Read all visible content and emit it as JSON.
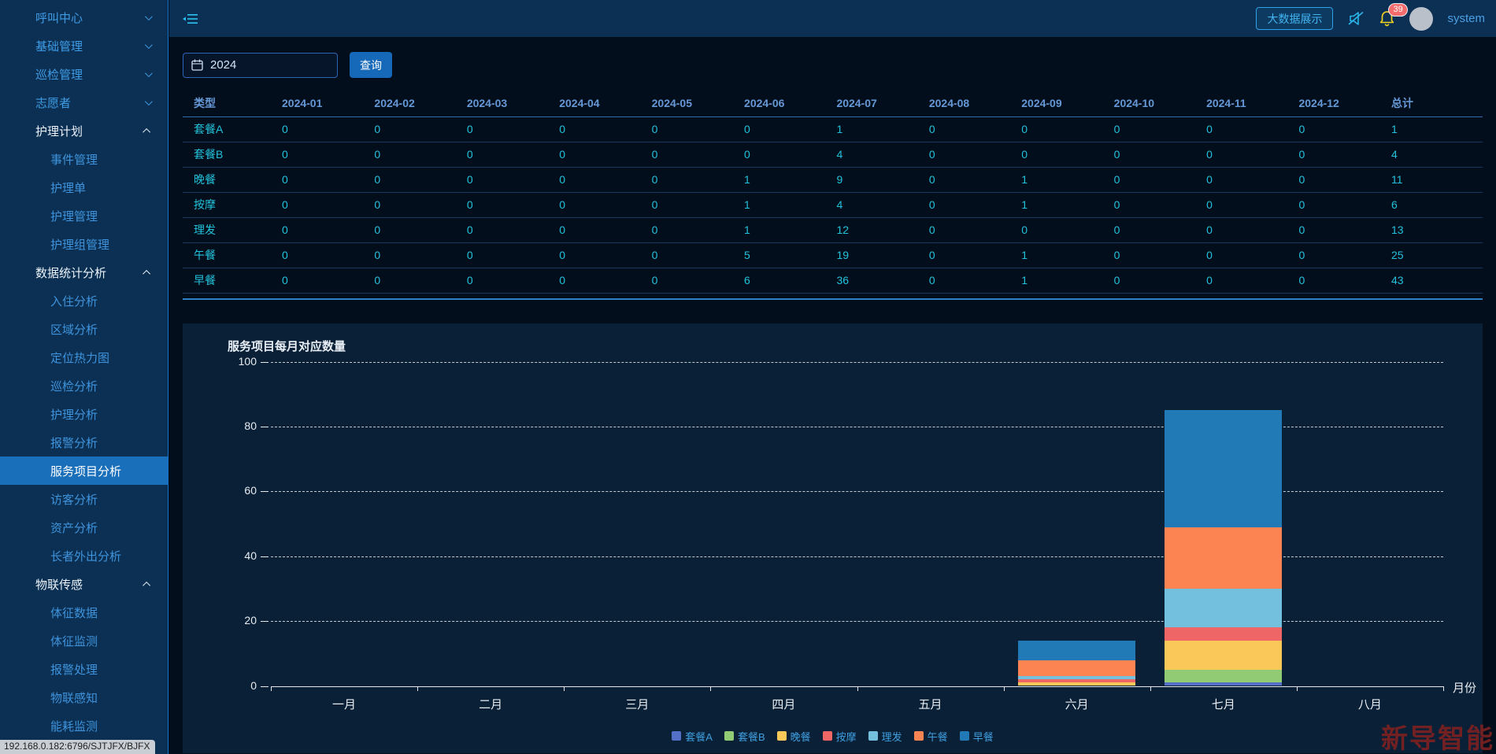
{
  "topbar": {
    "bigdata_button": "大数据展示",
    "notification_count": "39",
    "username": "system"
  },
  "sidebar": {
    "items": [
      {
        "label": "呼叫中心",
        "type": "parent",
        "expanded": false,
        "chevron": "down"
      },
      {
        "label": "基础管理",
        "type": "parent",
        "expanded": false,
        "chevron": "down"
      },
      {
        "label": "巡检管理",
        "type": "parent",
        "expanded": false,
        "chevron": "down"
      },
      {
        "label": "志愿者",
        "type": "parent",
        "expanded": false,
        "chevron": "down"
      },
      {
        "label": "护理计划",
        "type": "parent",
        "expanded": true,
        "chevron": "up"
      },
      {
        "label": "事件管理",
        "type": "child"
      },
      {
        "label": "护理单",
        "type": "child"
      },
      {
        "label": "护理管理",
        "type": "child"
      },
      {
        "label": "护理组管理",
        "type": "child"
      },
      {
        "label": "数据统计分析",
        "type": "parent",
        "expanded": true,
        "chevron": "up"
      },
      {
        "label": "入住分析",
        "type": "child"
      },
      {
        "label": "区域分析",
        "type": "child"
      },
      {
        "label": "定位热力图",
        "type": "child"
      },
      {
        "label": "巡检分析",
        "type": "child"
      },
      {
        "label": "护理分析",
        "type": "child"
      },
      {
        "label": "报警分析",
        "type": "child"
      },
      {
        "label": "服务项目分析",
        "type": "child",
        "selected": true
      },
      {
        "label": "访客分析",
        "type": "child"
      },
      {
        "label": "资产分析",
        "type": "child"
      },
      {
        "label": "长者外出分析",
        "type": "child"
      },
      {
        "label": "物联传感",
        "type": "parent",
        "expanded": true,
        "chevron": "up"
      },
      {
        "label": "体征数据",
        "type": "child"
      },
      {
        "label": "体征监测",
        "type": "child"
      },
      {
        "label": "报警处理",
        "type": "child"
      },
      {
        "label": "物联感知",
        "type": "child"
      },
      {
        "label": "能耗监测",
        "type": "child"
      }
    ]
  },
  "query": {
    "year_value": "2024",
    "search_button": "查询"
  },
  "table": {
    "columns": [
      "类型",
      "2024-01",
      "2024-02",
      "2024-03",
      "2024-04",
      "2024-05",
      "2024-06",
      "2024-07",
      "2024-08",
      "2024-09",
      "2024-10",
      "2024-11",
      "2024-12",
      "总计"
    ],
    "rows": [
      {
        "label": "套餐A",
        "values": [
          0,
          0,
          0,
          0,
          0,
          0,
          1,
          0,
          0,
          0,
          0,
          0
        ],
        "total": 1
      },
      {
        "label": "套餐B",
        "values": [
          0,
          0,
          0,
          0,
          0,
          0,
          4,
          0,
          0,
          0,
          0,
          0
        ],
        "total": 4
      },
      {
        "label": "晚餐",
        "values": [
          0,
          0,
          0,
          0,
          0,
          1,
          9,
          0,
          1,
          0,
          0,
          0
        ],
        "total": 11
      },
      {
        "label": "按摩",
        "values": [
          0,
          0,
          0,
          0,
          0,
          1,
          4,
          0,
          1,
          0,
          0,
          0
        ],
        "total": 6
      },
      {
        "label": "理发",
        "values": [
          0,
          0,
          0,
          0,
          0,
          1,
          12,
          0,
          0,
          0,
          0,
          0
        ],
        "total": 13
      },
      {
        "label": "午餐",
        "values": [
          0,
          0,
          0,
          0,
          0,
          5,
          19,
          0,
          1,
          0,
          0,
          0
        ],
        "total": 25
      },
      {
        "label": "早餐",
        "values": [
          0,
          0,
          0,
          0,
          0,
          6,
          36,
          0,
          1,
          0,
          0,
          0
        ],
        "total": 43
      }
    ]
  },
  "chart_data": {
    "type": "bar",
    "stacked": true,
    "title": "服务项目每月对应数量",
    "xlabel": "月份",
    "categories": [
      "一月",
      "二月",
      "三月",
      "四月",
      "五月",
      "六月",
      "七月",
      "八月"
    ],
    "series": [
      {
        "name": "套餐A",
        "color": "#5470c6",
        "values": [
          0,
          0,
          0,
          0,
          0,
          0,
          1,
          0
        ]
      },
      {
        "name": "套餐B",
        "color": "#91cc75",
        "values": [
          0,
          0,
          0,
          0,
          0,
          0,
          4,
          0
        ]
      },
      {
        "name": "晚餐",
        "color": "#fac858",
        "values": [
          0,
          0,
          0,
          0,
          0,
          1,
          9,
          0
        ]
      },
      {
        "name": "按摩",
        "color": "#ee6666",
        "values": [
          0,
          0,
          0,
          0,
          0,
          1,
          4,
          0
        ]
      },
      {
        "name": "理发",
        "color": "#73c0de",
        "values": [
          0,
          0,
          0,
          0,
          0,
          1,
          12,
          0
        ]
      },
      {
        "name": "午餐",
        "color": "#fc8452",
        "values": [
          0,
          0,
          0,
          0,
          0,
          5,
          19,
          0
        ]
      },
      {
        "name": "早餐",
        "color": "#2179b5",
        "values": [
          0,
          0,
          0,
          0,
          0,
          6,
          36,
          0
        ]
      }
    ],
    "ylim": [
      0,
      100
    ],
    "yticks": [
      0,
      20,
      40,
      60,
      80,
      100
    ],
    "grid": "dashed",
    "legend_position": "bottom"
  },
  "status_bar": "192.168.0.182:6796/SJTJFX/BJFX",
  "watermark": "新导智能"
}
